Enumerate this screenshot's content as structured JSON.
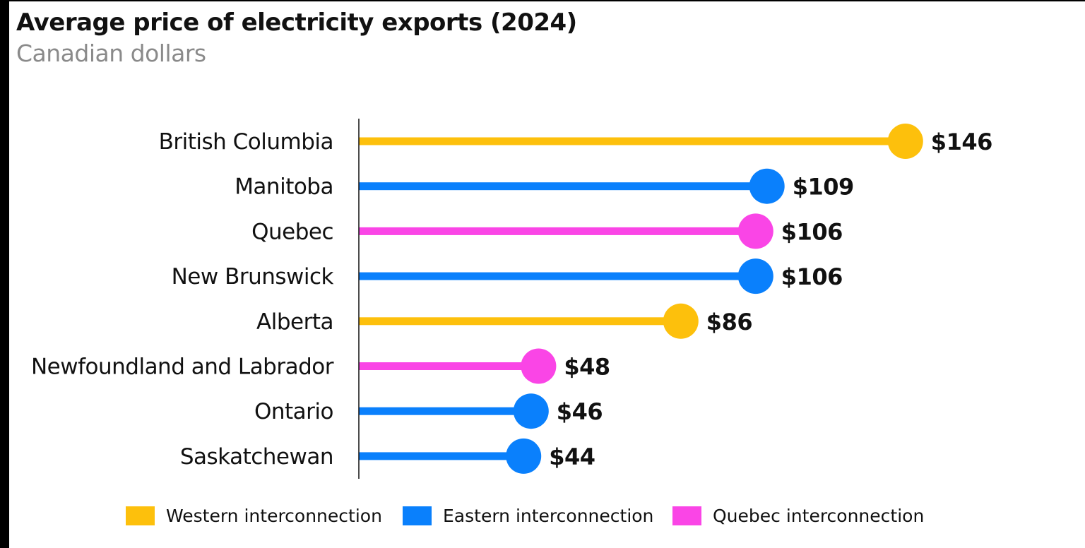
{
  "title": "Average price of electricity exports (2024)",
  "subtitle": "Canadian dollars",
  "colors": {
    "western": "#FDC00C",
    "eastern": "#0A80FC",
    "quebec": "#FA45E6",
    "axis": "#111111",
    "text": "#111111"
  },
  "legend": [
    {
      "key": "western",
      "label": "Western interconnection"
    },
    {
      "key": "eastern",
      "label": "Eastern interconnection"
    },
    {
      "key": "quebec",
      "label": "Quebec interconnection"
    }
  ],
  "chart_data": {
    "type": "bar",
    "style": "lollipop",
    "orientation": "horizontal",
    "title": "Average price of electricity exports (2024)",
    "subtitle": "Canadian dollars",
    "xlabel": "",
    "ylabel": "",
    "xlim": [
      0,
      150
    ],
    "grid": false,
    "legend_position": "bottom",
    "categories": [
      "British Columbia",
      "Manitoba",
      "Quebec",
      "New Brunswick",
      "Alberta",
      "Newfoundland and Labrador",
      "Ontario",
      "Saskatchewan"
    ],
    "values": [
      146,
      109,
      106,
      106,
      86,
      48,
      46,
      44
    ],
    "value_labels": [
      "$146",
      "$109",
      "$106",
      "$106",
      "$86",
      "$48",
      "$46",
      "$44"
    ],
    "groups": [
      "western",
      "eastern",
      "quebec",
      "eastern",
      "western",
      "quebec",
      "eastern",
      "eastern"
    ]
  }
}
